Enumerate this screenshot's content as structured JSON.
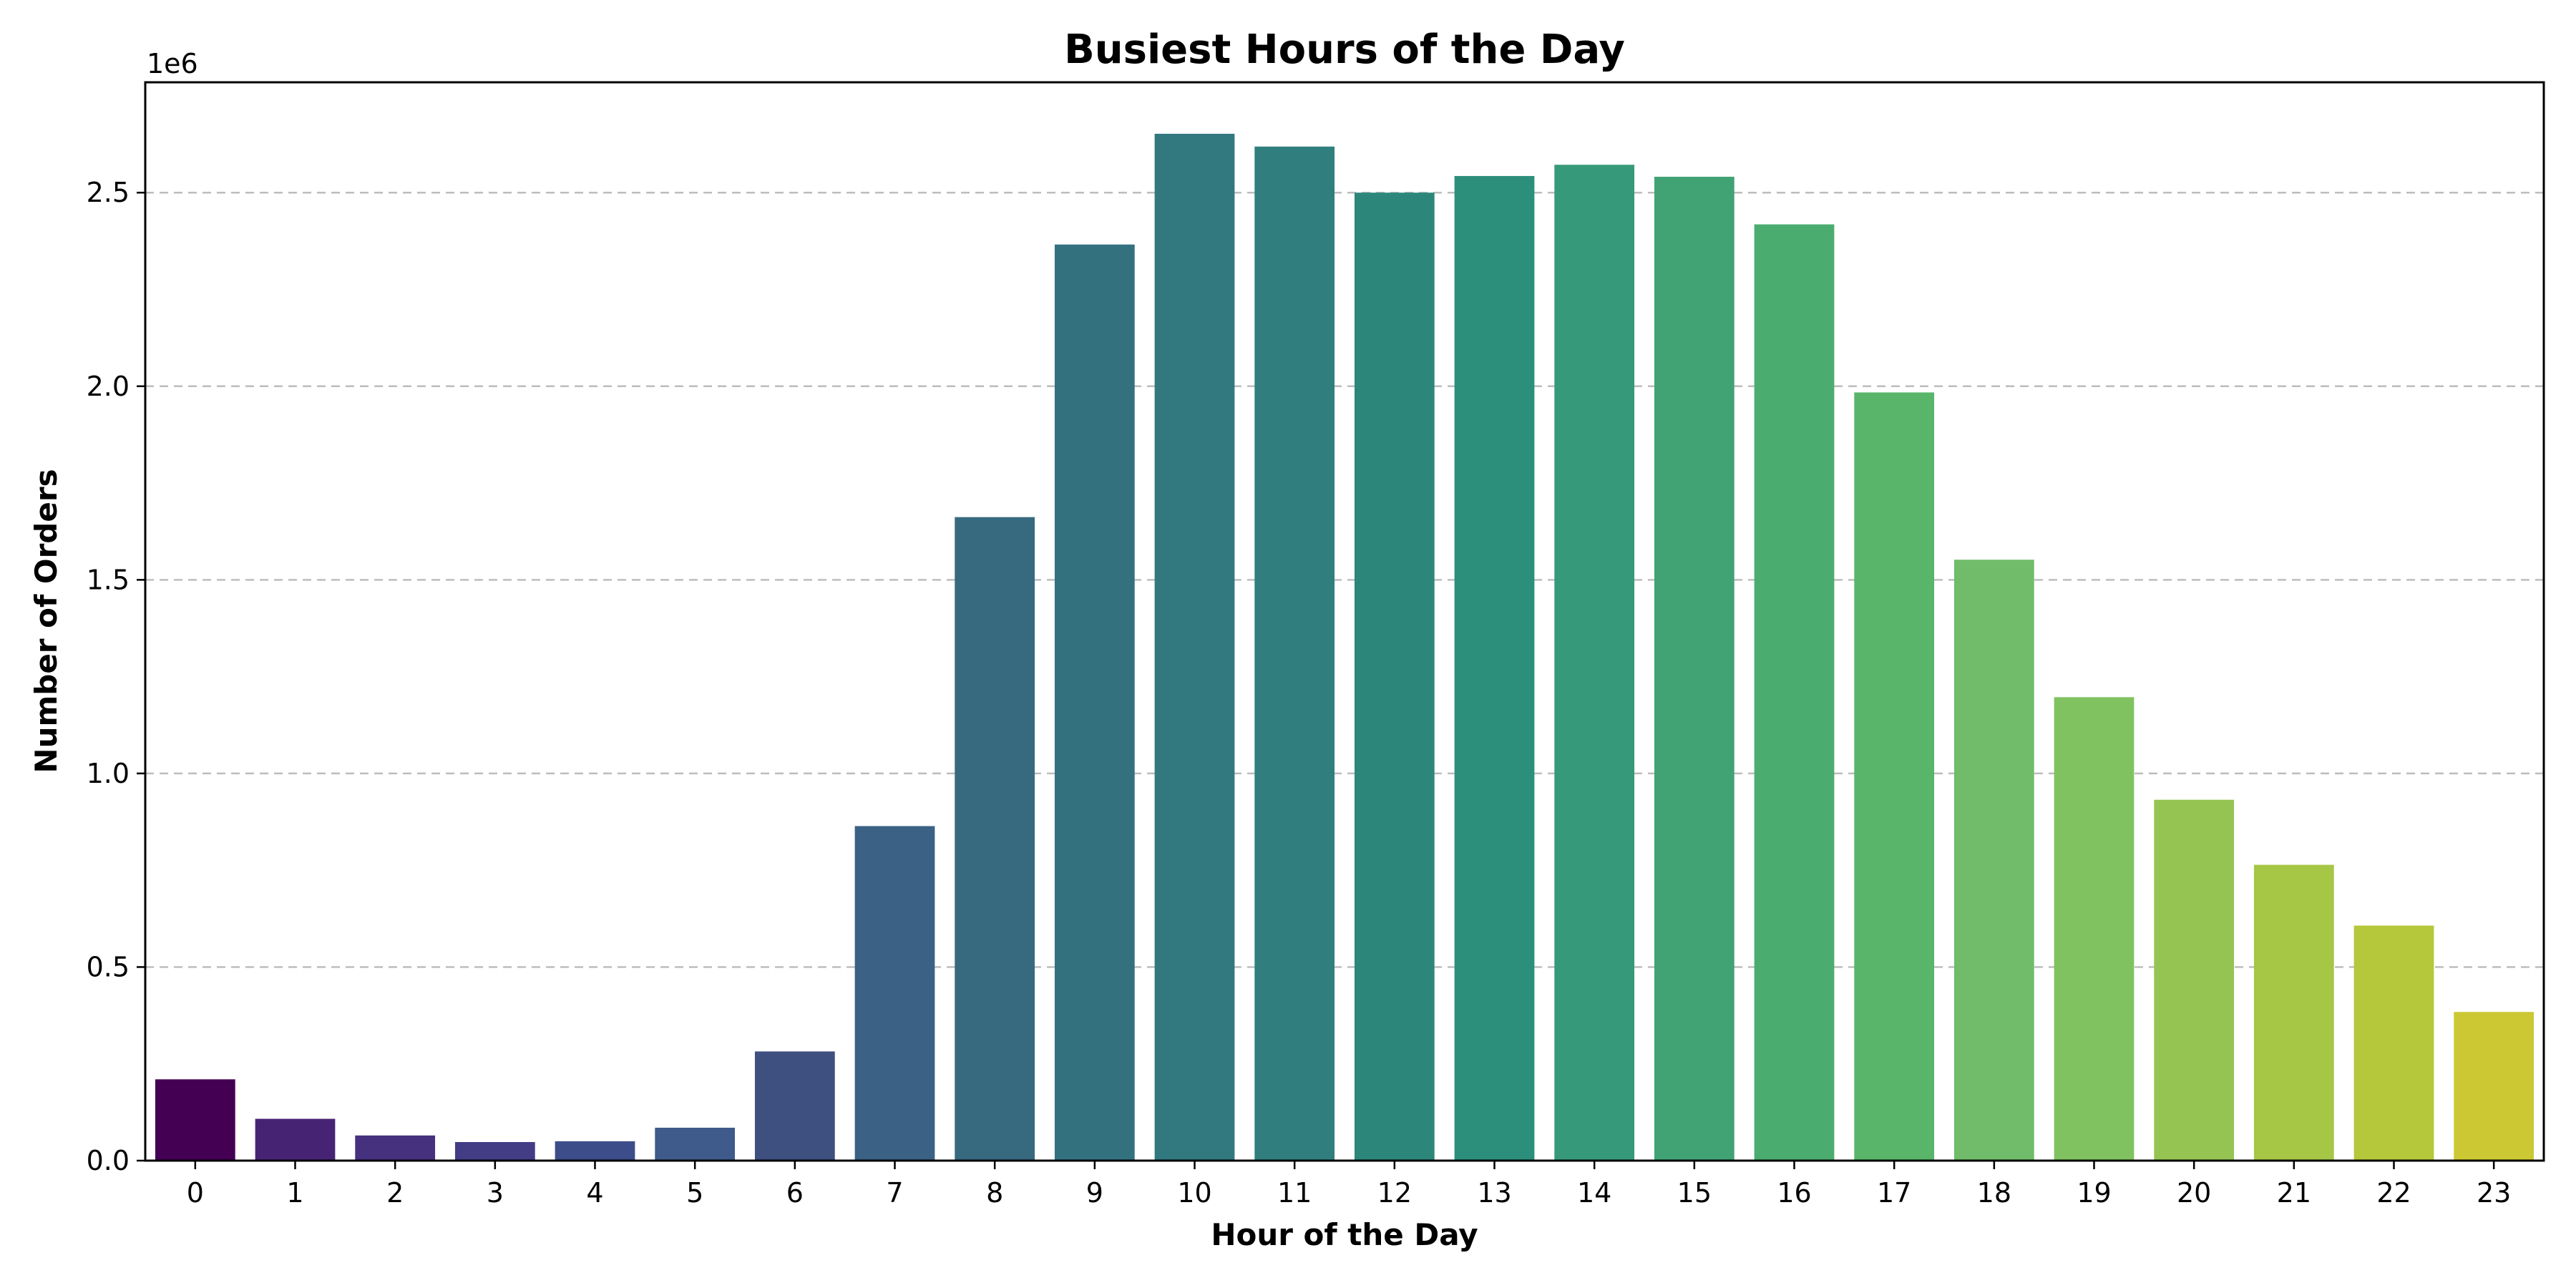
{
  "chart_data": {
    "type": "bar",
    "title": "Busiest Hours of the Day",
    "xlabel": "Hour of the Day",
    "ylabel": "Number of Orders",
    "y_offset_label": "1e6",
    "categories": [
      "0",
      "1",
      "2",
      "3",
      "4",
      "5",
      "6",
      "7",
      "8",
      "9",
      "10",
      "11",
      "12",
      "13",
      "14",
      "15",
      "16",
      "17",
      "18",
      "19",
      "20",
      "21",
      "22",
      "23"
    ],
    "values": [
      210000,
      108000,
      65000,
      48000,
      50000,
      85000,
      282000,
      864000,
      1662000,
      2366000,
      2652000,
      2619000,
      2500000,
      2543000,
      2572000,
      2541000,
      2418000,
      1984000,
      1552000,
      1197000,
      932000,
      764000,
      607000,
      384000
    ],
    "ylim": [
      0,
      2785000
    ],
    "yticks": [
      0,
      500000,
      1000000,
      1500000,
      2000000,
      2500000
    ],
    "ytick_labels": [
      "0.0",
      "0.5",
      "1.0",
      "1.5",
      "2.0",
      "2.5"
    ],
    "grid": "y-dashed",
    "colors": [
      "#440154",
      "#472473",
      "#45317e",
      "#423d85",
      "#3d4d8a",
      "#3f5b8b",
      "#3e5080",
      "#3b6184",
      "#37697f",
      "#34717f",
      "#32787f",
      "#307f7e",
      "#2d867a",
      "#2c8f7b",
      "#369979",
      "#41a274",
      "#4bac6f",
      "#58b56a",
      "#70bc6a",
      "#80c260",
      "#95c452",
      "#a6c645",
      "#b5c73a",
      "#cbc834"
    ]
  }
}
